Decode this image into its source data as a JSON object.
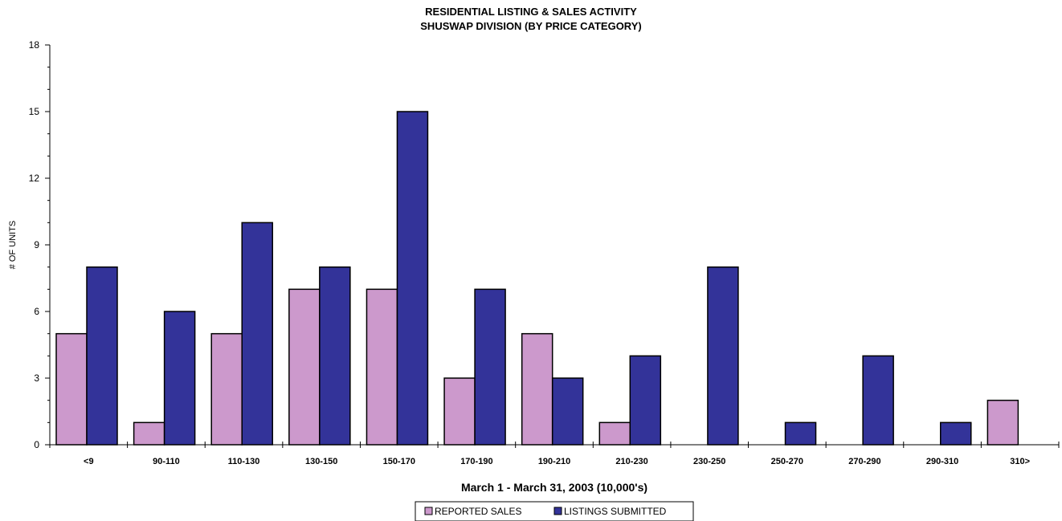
{
  "chart_data": {
    "type": "bar",
    "title": "RESIDENTIAL LISTING & SALES ACTIVITY",
    "subtitle": "SHUSWAP DIVISION (BY PRICE CATEGORY)",
    "xlabel": "March 1 - March 31, 2003 (10,000's)",
    "ylabel": "# OF UNITS",
    "ylim": [
      0,
      18
    ],
    "yticks": [
      "0",
      "3",
      "6",
      "9",
      "12",
      "15",
      "18"
    ],
    "categories": [
      "<9",
      "90-110",
      "110-130",
      "130-150",
      "150-170",
      "170-190",
      "190-210",
      "210-230",
      "230-250",
      "250-270",
      "270-290",
      "290-310",
      "310>"
    ],
    "series": [
      {
        "name": "REPORTED SALES",
        "color": "#cc99cc",
        "values": [
          5,
          1,
          5,
          7,
          7,
          3,
          5,
          1,
          0,
          0,
          0,
          0,
          2
        ]
      },
      {
        "name": "LISTINGS SUBMITTED",
        "color": "#333399",
        "values": [
          8,
          6,
          10,
          8,
          15,
          7,
          3,
          4,
          8,
          1,
          4,
          1,
          0
        ]
      }
    ],
    "grid": false,
    "legend_position": "bottom-center"
  }
}
